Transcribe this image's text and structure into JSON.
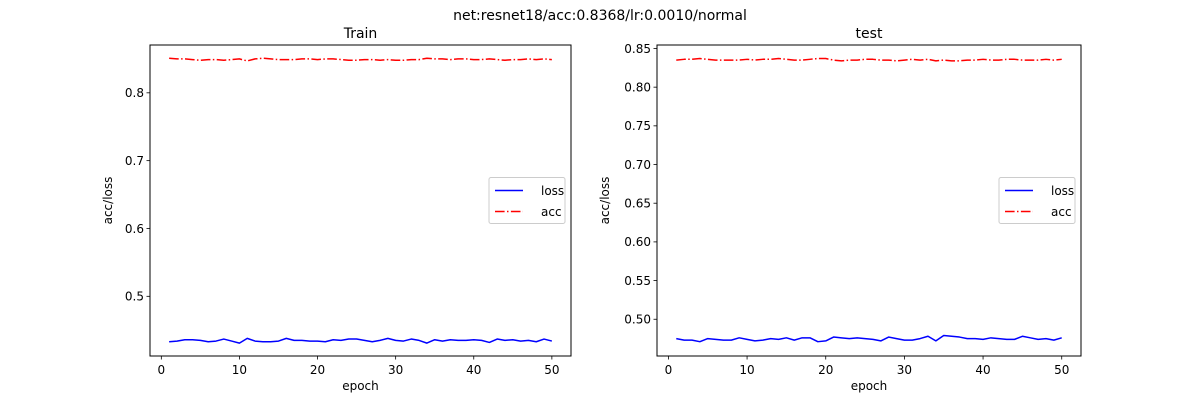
{
  "suptitle": "net:resnet18/acc:0.8368/lr:0.0010/normal",
  "colors": {
    "loss": "#0000ff",
    "acc": "#ff0000"
  },
  "chart_data": [
    {
      "type": "line",
      "title": "Train",
      "xlabel": "epoch",
      "ylabel": "acc/loss",
      "xlim": [
        -1.45,
        52.45
      ],
      "ylim": [
        0.412,
        0.8705
      ],
      "xticks": [
        0,
        10,
        20,
        30,
        40,
        50
      ],
      "xtick_labels": [
        "0",
        "10",
        "20",
        "30",
        "40",
        "50"
      ],
      "yticks": [
        0.5,
        0.6,
        0.7,
        0.8
      ],
      "ytick_labels": [
        "0.5",
        "0.6",
        "0.7",
        "0.8"
      ],
      "legend": {
        "position": "center-right",
        "entries": [
          "loss",
          "acc"
        ]
      },
      "grid": false,
      "x": [
        1,
        2,
        3,
        4,
        5,
        6,
        7,
        8,
        9,
        10,
        11,
        12,
        13,
        14,
        15,
        16,
        17,
        18,
        19,
        20,
        21,
        22,
        23,
        24,
        25,
        26,
        27,
        28,
        29,
        30,
        31,
        32,
        33,
        34,
        35,
        36,
        37,
        38,
        39,
        40,
        41,
        42,
        43,
        44,
        45,
        46,
        47,
        48,
        49,
        50
      ],
      "series": [
        {
          "name": "loss",
          "style": "solid",
          "values": [
            0.433,
            0.434,
            0.436,
            0.436,
            0.435,
            0.433,
            0.434,
            0.437,
            0.434,
            0.431,
            0.438,
            0.434,
            0.433,
            0.433,
            0.434,
            0.438,
            0.435,
            0.435,
            0.434,
            0.434,
            0.433,
            0.436,
            0.435,
            0.437,
            0.437,
            0.435,
            0.433,
            0.435,
            0.438,
            0.435,
            0.434,
            0.437,
            0.435,
            0.431,
            0.436,
            0.434,
            0.436,
            0.435,
            0.435,
            0.436,
            0.435,
            0.432,
            0.437,
            0.435,
            0.436,
            0.434,
            0.435,
            0.433,
            0.437,
            0.434
          ]
        },
        {
          "name": "acc",
          "style": "dashdot",
          "values": [
            0.851,
            0.85,
            0.85,
            0.849,
            0.848,
            0.849,
            0.849,
            0.848,
            0.849,
            0.85,
            0.847,
            0.85,
            0.851,
            0.85,
            0.849,
            0.849,
            0.849,
            0.85,
            0.85,
            0.849,
            0.85,
            0.85,
            0.849,
            0.848,
            0.848,
            0.849,
            0.849,
            0.848,
            0.849,
            0.848,
            0.848,
            0.849,
            0.849,
            0.851,
            0.85,
            0.85,
            0.849,
            0.85,
            0.85,
            0.849,
            0.849,
            0.85,
            0.849,
            0.848,
            0.849,
            0.849,
            0.85,
            0.849,
            0.85,
            0.849
          ]
        }
      ]
    },
    {
      "type": "line",
      "title": "test",
      "xlabel": "epoch",
      "ylabel": "acc/loss",
      "xlim": [
        -1.45,
        52.45
      ],
      "ylim": [
        0.4525,
        0.8545
      ],
      "xticks": [
        0,
        10,
        20,
        30,
        40,
        50
      ],
      "xtick_labels": [
        "0",
        "10",
        "20",
        "30",
        "40",
        "50"
      ],
      "yticks": [
        0.5,
        0.55,
        0.6,
        0.65,
        0.7,
        0.75,
        0.8,
        0.85
      ],
      "ytick_labels": [
        "0.50",
        "0.55",
        "0.60",
        "0.65",
        "0.70",
        "0.75",
        "0.80",
        "0.85"
      ],
      "legend": {
        "position": "center-right",
        "entries": [
          "loss",
          "acc"
        ]
      },
      "grid": false,
      "x": [
        1,
        2,
        3,
        4,
        5,
        6,
        7,
        8,
        9,
        10,
        11,
        12,
        13,
        14,
        15,
        16,
        17,
        18,
        19,
        20,
        21,
        22,
        23,
        24,
        25,
        26,
        27,
        28,
        29,
        30,
        31,
        32,
        33,
        34,
        35,
        36,
        37,
        38,
        39,
        40,
        41,
        42,
        43,
        44,
        45,
        46,
        47,
        48,
        49,
        50
      ],
      "series": [
        {
          "name": "loss",
          "style": "solid",
          "values": [
            0.475,
            0.473,
            0.473,
            0.471,
            0.475,
            0.474,
            0.473,
            0.473,
            0.476,
            0.474,
            0.472,
            0.473,
            0.475,
            0.474,
            0.476,
            0.473,
            0.476,
            0.476,
            0.471,
            0.472,
            0.477,
            0.476,
            0.475,
            0.476,
            0.475,
            0.474,
            0.472,
            0.477,
            0.475,
            0.473,
            0.473,
            0.475,
            0.478,
            0.472,
            0.479,
            0.478,
            0.477,
            0.475,
            0.475,
            0.474,
            0.476,
            0.475,
            0.474,
            0.474,
            0.478,
            0.476,
            0.474,
            0.475,
            0.473,
            0.476
          ]
        },
        {
          "name": "acc",
          "style": "dashdot",
          "values": [
            0.835,
            0.836,
            0.836,
            0.837,
            0.836,
            0.835,
            0.835,
            0.835,
            0.835,
            0.836,
            0.835,
            0.836,
            0.836,
            0.837,
            0.836,
            0.835,
            0.835,
            0.836,
            0.837,
            0.837,
            0.835,
            0.834,
            0.835,
            0.835,
            0.836,
            0.836,
            0.835,
            0.835,
            0.834,
            0.835,
            0.836,
            0.835,
            0.836,
            0.834,
            0.835,
            0.834,
            0.834,
            0.835,
            0.835,
            0.836,
            0.835,
            0.835,
            0.836,
            0.836,
            0.835,
            0.835,
            0.835,
            0.836,
            0.835,
            0.836
          ]
        }
      ]
    }
  ]
}
